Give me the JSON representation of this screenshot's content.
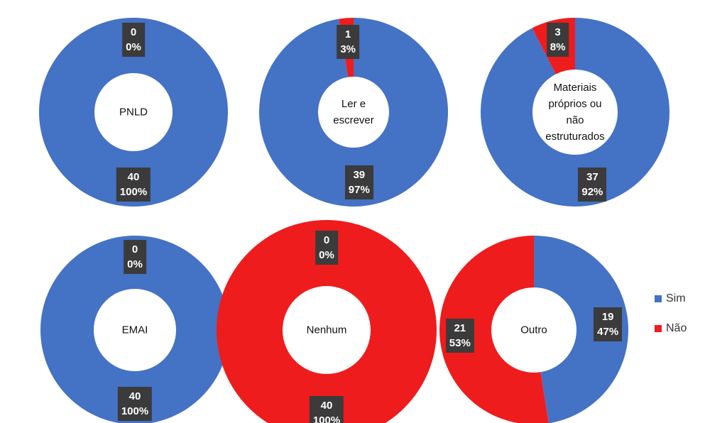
{
  "chart_data": [
    {
      "type": "donut",
      "title": "PNLD",
      "categories": [
        "Sim",
        "Não"
      ],
      "values": [
        40,
        0
      ],
      "percent_labels": [
        "100%",
        "0%"
      ],
      "colors": [
        "#4472c4",
        "#ee1c1c"
      ]
    },
    {
      "type": "donut",
      "title": "Ler e escrever",
      "categories": [
        "Sim",
        "Não"
      ],
      "values": [
        39,
        1
      ],
      "percent_labels": [
        "97%",
        "3%"
      ],
      "colors": [
        "#4472c4",
        "#ee1c1c"
      ]
    },
    {
      "type": "donut",
      "title": "Materiais próprios ou não estruturados",
      "categories": [
        "Sim",
        "Não"
      ],
      "values": [
        37,
        3
      ],
      "percent_labels": [
        "92%",
        "8%"
      ],
      "colors": [
        "#4472c4",
        "#ee1c1c"
      ]
    },
    {
      "type": "donut",
      "title": "EMAI",
      "categories": [
        "Sim",
        "Não"
      ],
      "values": [
        40,
        0
      ],
      "percent_labels": [
        "100%",
        "0%"
      ],
      "colors": [
        "#4472c4",
        "#ee1c1c"
      ]
    },
    {
      "type": "donut",
      "title": "Nenhum",
      "categories": [
        "Sim",
        "Não"
      ],
      "values": [
        0,
        40
      ],
      "percent_labels": [
        "0%",
        "100%"
      ],
      "colors": [
        "#4472c4",
        "#ee1c1c"
      ]
    },
    {
      "type": "donut",
      "title": "Outro",
      "categories": [
        "Sim",
        "Não"
      ],
      "values": [
        19,
        21
      ],
      "percent_labels": [
        "47%",
        "53%"
      ],
      "colors": [
        "#4472c4",
        "#ee1c1c"
      ]
    }
  ]
}
